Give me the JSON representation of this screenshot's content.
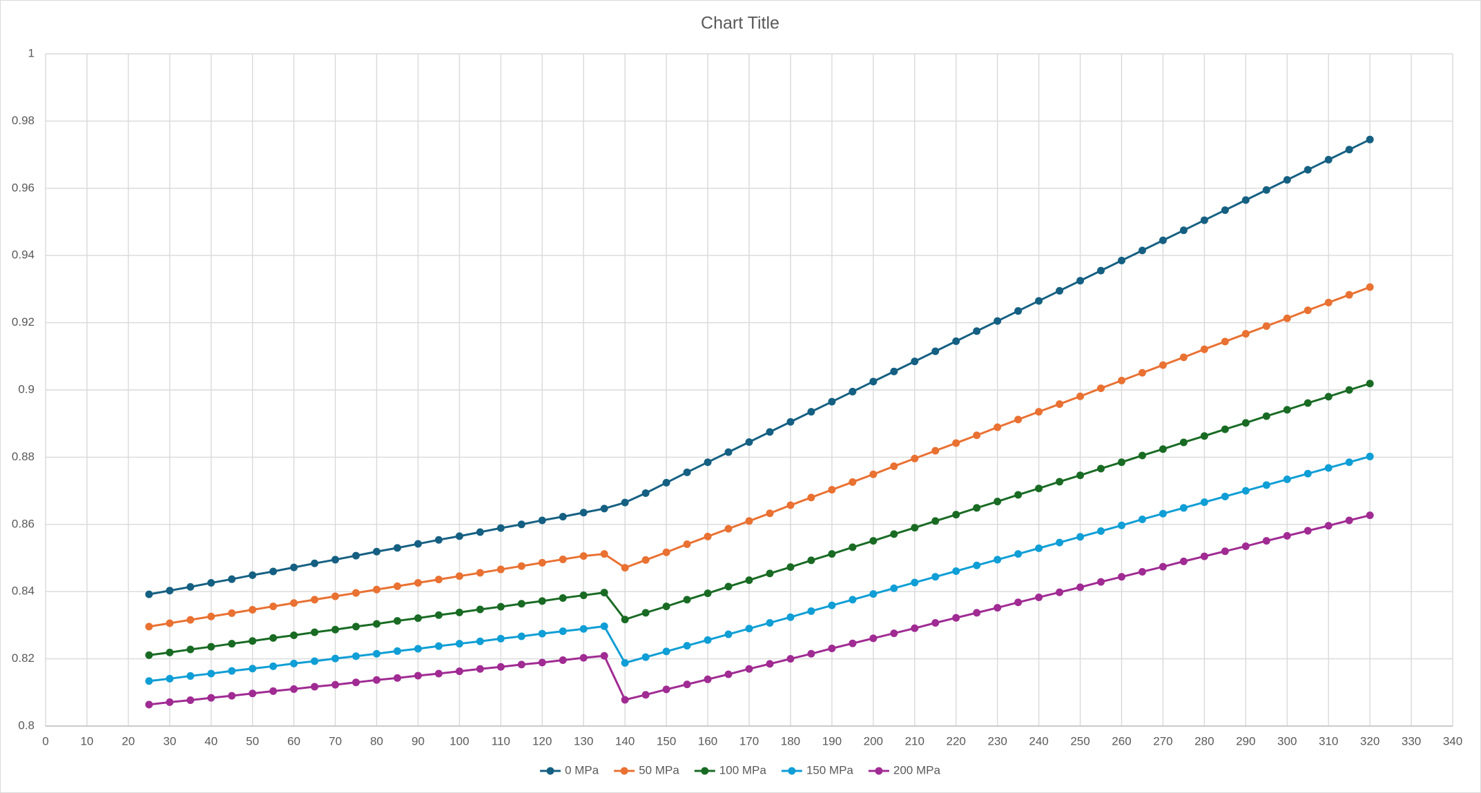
{
  "chart_data": {
    "type": "line",
    "title": "Chart Title",
    "x": [
      25,
      30,
      35,
      40,
      45,
      50,
      55,
      60,
      65,
      70,
      75,
      80,
      85,
      90,
      95,
      100,
      105,
      110,
      115,
      120,
      125,
      130,
      135,
      140,
      145,
      150,
      155,
      160,
      165,
      170,
      175,
      180,
      185,
      190,
      195,
      200,
      205,
      210,
      215,
      220,
      225,
      230,
      235,
      240,
      245,
      250,
      255,
      260,
      265,
      270,
      275,
      280,
      285,
      290,
      295,
      300,
      305,
      310,
      315,
      320
    ],
    "series": [
      {
        "name": "0 MPa",
        "color": "#156082",
        "values": [
          0.8392,
          0.8403,
          0.8414,
          0.8426,
          0.8437,
          0.8449,
          0.846,
          0.8472,
          0.8484,
          0.8495,
          0.8507,
          0.8519,
          0.853,
          0.8542,
          0.8554,
          0.8565,
          0.8577,
          0.8589,
          0.86,
          0.8612,
          0.8623,
          0.8635,
          0.8647,
          0.8665,
          0.8693,
          0.8724,
          0.8755,
          0.8785,
          0.8815,
          0.8845,
          0.8875,
          0.8905,
          0.8935,
          0.8965,
          0.8995,
          0.9025,
          0.9055,
          0.9085,
          0.9115,
          0.9145,
          0.9175,
          0.9205,
          0.9235,
          0.9265,
          0.9295,
          0.9325,
          0.9355,
          0.9385,
          0.9415,
          0.9445,
          0.9475,
          0.9505,
          0.9535,
          0.9565,
          0.9595,
          0.9625,
          0.9655,
          0.9685,
          0.9715,
          0.9745
        ]
      },
      {
        "name": "50 MPa",
        "color": "#e97132",
        "values": [
          0.8296,
          0.8306,
          0.8316,
          0.8326,
          0.8336,
          0.8346,
          0.8356,
          0.8366,
          0.8376,
          0.8386,
          0.8396,
          0.8406,
          0.8416,
          0.8426,
          0.8436,
          0.8446,
          0.8456,
          0.8466,
          0.8476,
          0.8486,
          0.8496,
          0.8506,
          0.8512,
          0.8471,
          0.8494,
          0.8517,
          0.8541,
          0.8564,
          0.8587,
          0.861,
          0.8633,
          0.8657,
          0.868,
          0.8703,
          0.8726,
          0.8749,
          0.8773,
          0.8796,
          0.8819,
          0.8842,
          0.8865,
          0.8889,
          0.8912,
          0.8935,
          0.8958,
          0.8981,
          0.9005,
          0.9028,
          0.9051,
          0.9074,
          0.9097,
          0.9121,
          0.9144,
          0.9167,
          0.919,
          0.9213,
          0.9237,
          0.926,
          0.9283,
          0.9306
        ]
      },
      {
        "name": "100 MPa",
        "color": "#196b24",
        "values": [
          0.8211,
          0.8219,
          0.8228,
          0.8236,
          0.8245,
          0.8253,
          0.8262,
          0.827,
          0.8279,
          0.8287,
          0.8296,
          0.8304,
          0.8313,
          0.8321,
          0.833,
          0.8338,
          0.8347,
          0.8355,
          0.8364,
          0.8372,
          0.8381,
          0.8389,
          0.8397,
          0.8317,
          0.8337,
          0.8356,
          0.8376,
          0.8395,
          0.8415,
          0.8434,
          0.8454,
          0.8473,
          0.8493,
          0.8512,
          0.8532,
          0.8551,
          0.8571,
          0.859,
          0.861,
          0.8629,
          0.8649,
          0.8668,
          0.8688,
          0.8707,
          0.8727,
          0.8746,
          0.8766,
          0.8785,
          0.8805,
          0.8824,
          0.8844,
          0.8863,
          0.8883,
          0.8902,
          0.8922,
          0.8941,
          0.8961,
          0.898,
          0.9,
          0.9019
        ]
      },
      {
        "name": "150 MPa",
        "color": "#0f9ed5",
        "values": [
          0.8134,
          0.8141,
          0.8149,
          0.8156,
          0.8164,
          0.8171,
          0.8178,
          0.8186,
          0.8193,
          0.8201,
          0.8208,
          0.8215,
          0.8223,
          0.823,
          0.8238,
          0.8245,
          0.8252,
          0.826,
          0.8267,
          0.8275,
          0.8282,
          0.8289,
          0.8297,
          0.8188,
          0.8205,
          0.8222,
          0.8239,
          0.8256,
          0.8273,
          0.829,
          0.8307,
          0.8324,
          0.8342,
          0.8359,
          0.8376,
          0.8393,
          0.841,
          0.8427,
          0.8444,
          0.8461,
          0.8478,
          0.8495,
          0.8512,
          0.8529,
          0.8546,
          0.8563,
          0.858,
          0.8597,
          0.8615,
          0.8632,
          0.8649,
          0.8666,
          0.8683,
          0.87,
          0.8717,
          0.8734,
          0.8751,
          0.8768,
          0.8785,
          0.8802
        ]
      },
      {
        "name": "200 MPa",
        "color": "#a02b93",
        "values": [
          0.8064,
          0.8071,
          0.8077,
          0.8084,
          0.809,
          0.8097,
          0.8104,
          0.811,
          0.8117,
          0.8123,
          0.813,
          0.8137,
          0.8143,
          0.815,
          0.8156,
          0.8163,
          0.817,
          0.8176,
          0.8183,
          0.8189,
          0.8196,
          0.8203,
          0.8209,
          0.8078,
          0.8093,
          0.8109,
          0.8124,
          0.8139,
          0.8154,
          0.817,
          0.8185,
          0.82,
          0.8215,
          0.8231,
          0.8246,
          0.8261,
          0.8276,
          0.8291,
          0.8307,
          0.8322,
          0.8337,
          0.8352,
          0.8368,
          0.8383,
          0.8398,
          0.8413,
          0.8429,
          0.8444,
          0.8459,
          0.8474,
          0.849,
          0.8505,
          0.852,
          0.8535,
          0.8551,
          0.8566,
          0.8581,
          0.8596,
          0.8612,
          0.8627
        ]
      }
    ],
    "xlim": [
      0,
      340
    ],
    "xticks": [
      0,
      10,
      20,
      30,
      40,
      50,
      60,
      70,
      80,
      90,
      100,
      110,
      120,
      130,
      140,
      150,
      160,
      170,
      180,
      190,
      200,
      210,
      220,
      230,
      240,
      250,
      260,
      270,
      280,
      290,
      300,
      310,
      320,
      330,
      340
    ],
    "ylim": [
      0.8,
      1
    ],
    "yticks": [
      0.8,
      0.82,
      0.84,
      0.86,
      0.88,
      0.9,
      0.92,
      0.94,
      0.96,
      0.98,
      1
    ],
    "grid": true,
    "legend": "bottom"
  }
}
